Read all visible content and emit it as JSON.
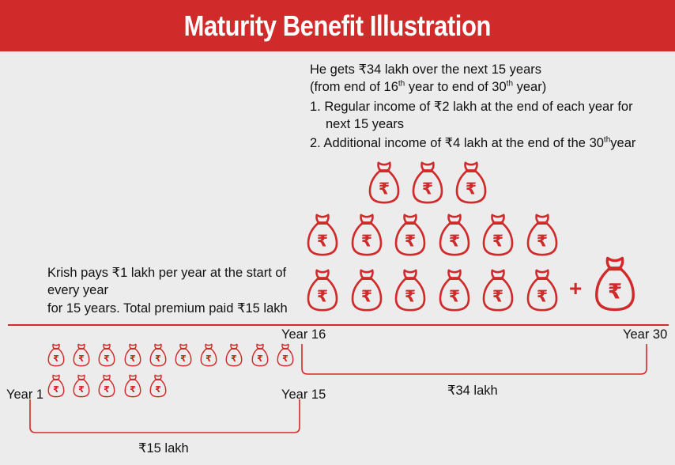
{
  "title": "Maturity Benefit Illustration",
  "right_text": {
    "line1": "He gets ₹34 lakh over the next 15 years",
    "line2_a": "(from end of 16",
    "line2_sup1": "th",
    "line2_b": " year to end of 30",
    "line2_sup2": "th",
    "line2_c": " year)",
    "line3": "1. Regular income of ₹2 lakh at the end of each year for",
    "line4": "next 15 years",
    "line5_a": "2. Additional income of ₹4 lakh at the end of the 30",
    "line5_sup": "th",
    "line5_b": "year"
  },
  "left_text": {
    "line1": "Krish pays ₹1 lakh per year at the start of",
    "line2": "every year",
    "line3": "for 15 years. Total premium paid ₹15 lakh"
  },
  "timeline": {
    "year_1": "Year 1",
    "year_15": "Year 15",
    "year_16": "Year 16",
    "year_30": "Year 30"
  },
  "totals": {
    "premium_total": "₹15 lakh",
    "benefit_total": "₹34 lakh"
  },
  "symbols": {
    "plus": "+",
    "rupee": "₹"
  },
  "counts": {
    "premium_bags": 15,
    "regular_income_bags": 15,
    "additional_income_bags": 1
  },
  "colors": {
    "accent": "#d12a2a",
    "background": "#ececec",
    "banner_text": "#ffffff"
  }
}
